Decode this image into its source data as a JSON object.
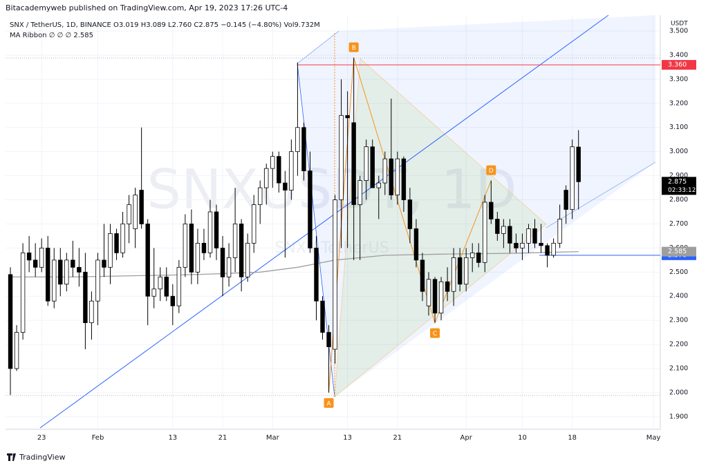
{
  "header": "Bitacademyweb published on TradingView.com, Apr 19, 2023 17:26 UTC-4",
  "chart_data": {
    "type": "candlestick",
    "legend_lines": [
      "SNX / TetherUS, 1D, BINANCE  O3.019  H3.089  L2.760  C2.875  −0.145 (−4.80%)  Vol9.732M",
      "MA Ribbon  ∅  ∅  ∅  2.585"
    ],
    "watermark": [
      "SNXUSDT, 1D",
      "SNX / TetherUS"
    ],
    "y_unit": "USDT",
    "up_color": "#ffffff",
    "down_color": "#000000",
    "ohlc": [
      [
        2.49,
        2.52,
        1.99,
        2.1
      ],
      [
        2.1,
        2.28,
        2.09,
        2.25
      ],
      [
        2.25,
        2.62,
        2.22,
        2.58
      ],
      [
        2.58,
        2.65,
        2.5,
        2.55
      ],
      [
        2.55,
        2.62,
        2.48,
        2.52
      ],
      [
        2.52,
        2.64,
        2.5,
        2.6
      ],
      [
        2.6,
        2.65,
        2.36,
        2.38
      ],
      [
        2.38,
        2.6,
        2.35,
        2.55
      ],
      [
        2.55,
        2.6,
        2.4,
        2.45
      ],
      [
        2.45,
        2.58,
        2.42,
        2.55
      ],
      [
        2.55,
        2.63,
        2.48,
        2.52
      ],
      [
        2.52,
        2.6,
        2.44,
        2.5
      ],
      [
        2.5,
        2.58,
        2.18,
        2.29
      ],
      [
        2.29,
        2.42,
        2.22,
        2.38
      ],
      [
        2.38,
        2.58,
        2.28,
        2.55
      ],
      [
        2.55,
        2.7,
        2.48,
        2.52
      ],
      [
        2.52,
        2.7,
        2.45,
        2.66
      ],
      [
        2.66,
        2.68,
        2.55,
        2.58
      ],
      [
        2.58,
        2.75,
        2.56,
        2.7
      ],
      [
        2.7,
        2.82,
        2.62,
        2.78
      ],
      [
        2.68,
        2.85,
        2.6,
        2.82
      ],
      [
        2.84,
        3.1,
        2.68,
        2.7
      ],
      [
        2.7,
        2.72,
        2.28,
        2.4
      ],
      [
        2.4,
        2.6,
        2.35,
        2.43
      ],
      [
        2.43,
        2.52,
        2.38,
        2.48
      ],
      [
        2.48,
        2.52,
        2.38,
        2.4
      ],
      [
        2.4,
        2.45,
        2.28,
        2.36
      ],
      [
        2.36,
        2.55,
        2.33,
        2.52
      ],
      [
        2.52,
        2.74,
        2.48,
        2.7
      ],
      [
        2.7,
        2.76,
        2.45,
        2.5
      ],
      [
        2.5,
        2.68,
        2.45,
        2.62
      ],
      [
        2.62,
        2.68,
        2.55,
        2.58
      ],
      [
        2.58,
        2.8,
        2.56,
        2.75
      ],
      [
        2.75,
        2.78,
        2.55,
        2.6
      ],
      [
        2.6,
        2.65,
        2.4,
        2.48
      ],
      [
        2.48,
        2.62,
        2.44,
        2.56
      ],
      [
        2.56,
        2.85,
        2.5,
        2.7
      ],
      [
        2.7,
        2.72,
        2.42,
        2.48
      ],
      [
        2.48,
        2.66,
        2.46,
        2.62
      ],
      [
        2.62,
        2.82,
        2.58,
        2.78
      ],
      [
        2.78,
        2.88,
        2.7,
        2.85
      ],
      [
        2.85,
        2.95,
        2.78,
        2.93
      ],
      [
        2.93,
        3.0,
        2.85,
        2.98
      ],
      [
        2.98,
        3.0,
        2.83,
        2.87
      ],
      [
        2.87,
        2.92,
        2.56,
        2.84
      ],
      [
        2.84,
        3.05,
        2.8,
        3.0
      ],
      [
        3.0,
        3.37,
        2.9,
        3.1
      ],
      [
        3.1,
        3.12,
        2.88,
        2.92
      ],
      [
        2.92,
        3.0,
        2.58,
        2.6
      ],
      [
        2.6,
        2.65,
        2.3,
        2.38
      ],
      [
        2.38,
        2.4,
        2.22,
        2.25
      ],
      [
        2.25,
        2.28,
        2.0,
        2.19
      ],
      [
        2.18,
        2.82,
        2.12,
        2.8
      ],
      [
        2.8,
        3.3,
        2.6,
        3.15
      ],
      [
        3.15,
        3.25,
        2.6,
        3.14
      ],
      [
        3.12,
        3.39,
        2.55,
        2.78
      ],
      [
        2.78,
        2.9,
        2.55,
        2.88
      ],
      [
        2.88,
        3.05,
        2.8,
        3.02
      ],
      [
        3.02,
        3.05,
        2.85,
        2.85
      ],
      [
        2.85,
        2.9,
        2.72,
        2.87
      ],
      [
        2.87,
        3.0,
        2.82,
        2.97
      ],
      [
        2.97,
        3.22,
        2.8,
        2.82
      ],
      [
        2.82,
        3.0,
        2.78,
        2.97
      ],
      [
        2.97,
        2.98,
        2.75,
        2.8
      ],
      [
        2.8,
        2.85,
        2.62,
        2.68
      ],
      [
        2.68,
        2.72,
        2.52,
        2.55
      ],
      [
        2.55,
        2.58,
        2.38,
        2.42
      ],
      [
        2.36,
        2.5,
        2.32,
        2.47
      ],
      [
        2.47,
        2.48,
        2.29,
        2.33
      ],
      [
        2.33,
        2.48,
        2.3,
        2.46
      ],
      [
        2.46,
        2.52,
        2.38,
        2.42
      ],
      [
        2.42,
        2.6,
        2.36,
        2.56
      ],
      [
        2.56,
        2.6,
        2.42,
        2.45
      ],
      [
        2.45,
        2.6,
        2.42,
        2.56
      ],
      [
        2.56,
        2.62,
        2.5,
        2.58
      ],
      [
        2.58,
        2.62,
        2.52,
        2.54
      ],
      [
        2.54,
        2.82,
        2.5,
        2.79
      ],
      [
        2.79,
        2.88,
        2.7,
        2.72
      ],
      [
        2.72,
        2.75,
        2.63,
        2.66
      ],
      [
        2.66,
        2.72,
        2.6,
        2.69
      ],
      [
        2.69,
        2.72,
        2.58,
        2.62
      ],
      [
        2.62,
        2.66,
        2.58,
        2.6
      ],
      [
        2.6,
        2.66,
        2.55,
        2.62
      ],
      [
        2.62,
        2.7,
        2.58,
        2.68
      ],
      [
        2.68,
        2.72,
        2.6,
        2.62
      ],
      [
        2.62,
        2.7,
        2.58,
        2.61
      ],
      [
        2.61,
        2.62,
        2.52,
        2.57
      ],
      [
        2.57,
        2.64,
        2.56,
        2.62
      ],
      [
        2.62,
        2.78,
        2.6,
        2.72
      ],
      [
        2.84,
        2.86,
        2.7,
        2.76
      ],
      [
        2.76,
        3.05,
        2.72,
        3.02
      ],
      [
        3.019,
        3.089,
        2.76,
        2.875
      ]
    ],
    "xlim": [
      -0.78,
      104.1
    ],
    "xticks": [
      {
        "value": 5,
        "label": "23"
      },
      {
        "value": 14,
        "label": "Feb"
      },
      {
        "value": 26,
        "label": "13"
      },
      {
        "value": 34,
        "label": "21"
      },
      {
        "value": 42,
        "label": "Mar"
      },
      {
        "value": 54,
        "label": "13"
      },
      {
        "value": 62,
        "label": "21"
      },
      {
        "value": 73,
        "label": "Apr"
      },
      {
        "value": 82,
        "label": "10"
      },
      {
        "value": 90,
        "label": "18"
      },
      {
        "value": 103,
        "label": "May"
      }
    ],
    "ylim": [
      1.848,
      3.566
    ],
    "yticks": [
      {
        "value": 1.9,
        "label": "1.900"
      },
      {
        "value": 2.0,
        "label": "2.000"
      },
      {
        "value": 2.1,
        "label": "2.100"
      },
      {
        "value": 2.2,
        "label": "2.200"
      },
      {
        "value": 2.3,
        "label": "2.300"
      },
      {
        "value": 2.4,
        "label": "2.400"
      },
      {
        "value": 2.5,
        "label": "2.500"
      },
      {
        "value": 2.6,
        "label": "2.600"
      },
      {
        "value": 2.7,
        "label": "2.700"
      },
      {
        "value": 2.8,
        "label": "2.800"
      },
      {
        "value": 2.9,
        "label": "2.900"
      },
      {
        "value": 3.0,
        "label": "3.000"
      },
      {
        "value": 3.1,
        "label": "3.100"
      },
      {
        "value": 3.2,
        "label": "3.200"
      },
      {
        "value": 3.3,
        "label": "3.300"
      },
      {
        "value": 3.4,
        "label": "3.400"
      },
      {
        "value": 3.5,
        "label": "3.500"
      }
    ],
    "grid": true,
    "ma_ribbon": {
      "color": "#9e9e9e",
      "x": [
        0,
        10,
        20,
        30,
        40,
        46,
        52,
        60,
        70,
        80,
        91
      ],
      "values": [
        2.48,
        2.48,
        2.485,
        2.49,
        2.5,
        2.52,
        2.55,
        2.57,
        2.575,
        2.578,
        2.585
      ]
    },
    "ma_last": {
      "value": 2.585,
      "label": "2.585",
      "color": "#9e9e9e"
    },
    "price_lines": [
      {
        "value": 3.36,
        "label": "3.360",
        "color": "#f23645"
      },
      {
        "value": 2.57,
        "label": "2.570",
        "color": "#2962ff"
      }
    ],
    "last_price": {
      "value": 2.875,
      "label": "2.875",
      "countdown": "02:33:12",
      "color": "#000000"
    },
    "pattern": {
      "color": "#f7931a",
      "points": [
        {
          "label": "A",
          "x": 51,
          "value": 2.0
        },
        {
          "label": "B",
          "x": 55,
          "value": 3.39
        },
        {
          "label": "C",
          "x": 68,
          "value": 2.29
        },
        {
          "label": "D",
          "x": 77,
          "value": 2.88
        }
      ]
    }
  },
  "footer": "TradingView"
}
